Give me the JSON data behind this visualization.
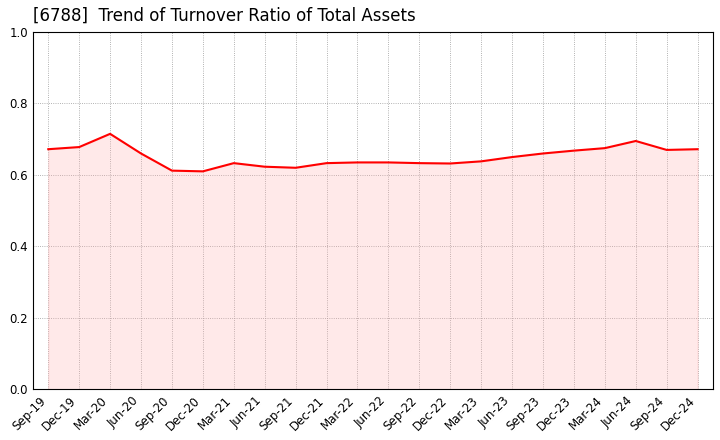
{
  "title": "[6788]  Trend of Turnover Ratio of Total Assets",
  "x_labels": [
    "Sep-19",
    "Dec-19",
    "Mar-20",
    "Jun-20",
    "Sep-20",
    "Dec-20",
    "Mar-21",
    "Jun-21",
    "Sep-21",
    "Dec-21",
    "Mar-22",
    "Jun-22",
    "Sep-22",
    "Dec-22",
    "Mar-23",
    "Jun-23",
    "Sep-23",
    "Dec-23",
    "Mar-24",
    "Jun-24",
    "Sep-24",
    "Dec-24"
  ],
  "y_values": [
    0.672,
    0.678,
    0.715,
    0.66,
    0.612,
    0.61,
    0.633,
    0.623,
    0.62,
    0.633,
    0.635,
    0.635,
    0.633,
    0.632,
    0.638,
    0.65,
    0.66,
    0.668,
    0.675,
    0.695,
    0.67,
    0.672
  ],
  "line_color": "#FF0000",
  "line_width": 1.5,
  "ylim": [
    0.0,
    1.0
  ],
  "yticks": [
    0.0,
    0.2,
    0.4,
    0.6,
    0.8,
    1.0
  ],
  "background_color": "#FFFFFF",
  "grid_color": "#999999",
  "title_fontsize": 12,
  "tick_fontsize": 8.5,
  "fill_color": "#FFAAAA",
  "fill_alpha": 0.25
}
